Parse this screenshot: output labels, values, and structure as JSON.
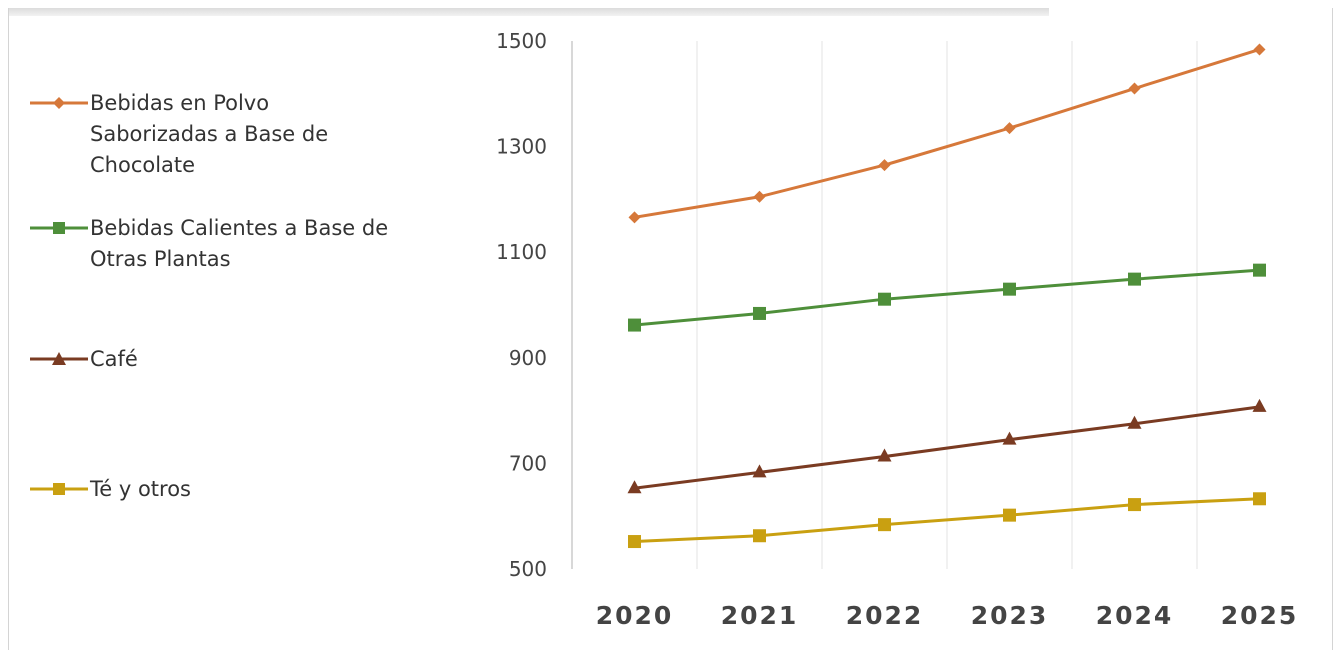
{
  "chart_data": {
    "type": "line",
    "title": "",
    "xlabel": "",
    "ylabel": "",
    "categories": [
      "2020",
      "2021",
      "2022",
      "2023",
      "2024",
      "2025"
    ],
    "ylim": [
      500,
      1500
    ],
    "yticks": [
      500,
      700,
      900,
      1100,
      1300,
      1500
    ],
    "grid": {
      "vertical": true,
      "horizontal": false
    },
    "legend_position": "left",
    "series": [
      {
        "name": "Bebidas en Polvo Saborizadas a Base de Chocolate",
        "legend_lines": "Bebidas en Polvo\nSaborizadas a Base de\nChocolate",
        "color": "#d6783a",
        "marker": "diamond",
        "values": [
          1166,
          1205,
          1265,
          1335,
          1410,
          1484
        ]
      },
      {
        "name": "Bebidas Calientes a Base de Otras Plantas",
        "legend_lines": "Bebidas Calientes a Base de\nOtras Plantas",
        "color": "#4e8f3a",
        "marker": "square",
        "values": [
          962,
          984,
          1011,
          1030,
          1049,
          1066
        ]
      },
      {
        "name": "Café",
        "legend_lines": "Café",
        "color": "#7a3b22",
        "marker": "triangle",
        "values": [
          653,
          683,
          713,
          745,
          775,
          807
        ]
      },
      {
        "name": "Té y otros",
        "legend_lines": "Té y otros",
        "color": "#c9a011",
        "marker": "square",
        "values": [
          552,
          563,
          584,
          602,
          622,
          633
        ]
      }
    ]
  }
}
